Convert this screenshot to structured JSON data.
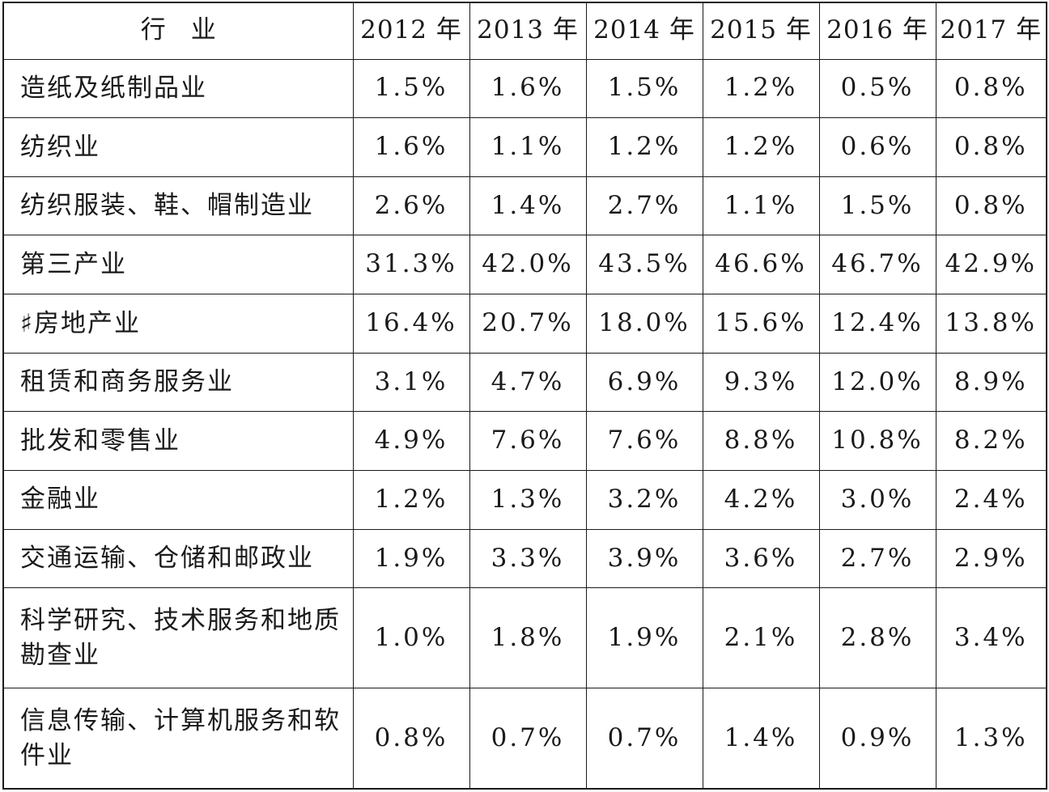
{
  "table": {
    "header": {
      "industry": "行　业",
      "years": [
        "2012 年",
        "2013 年",
        "2014 年",
        "2015 年",
        "2016 年",
        "2017 年"
      ]
    },
    "rows": [
      {
        "industry": "造纸及纸制品业",
        "values": [
          "1.5%",
          "1.6%",
          "1.5%",
          "1.2%",
          "0.5%",
          "0.8%"
        ]
      },
      {
        "industry": "纺织业",
        "values": [
          "1.6%",
          "1.1%",
          "1.2%",
          "1.2%",
          "0.6%",
          "0.8%"
        ]
      },
      {
        "industry": "纺织服装、鞋、帽制造业",
        "values": [
          "2.6%",
          "1.4%",
          "2.7%",
          "1.1%",
          "1.5%",
          "0.8%"
        ]
      },
      {
        "industry": "第三产业",
        "values": [
          "31.3%",
          "42.0%",
          "43.5%",
          "46.6%",
          "46.7%",
          "42.9%"
        ]
      },
      {
        "industry": "♯房地产业",
        "values": [
          "16.4%",
          "20.7%",
          "18.0%",
          "15.6%",
          "12.4%",
          "13.8%"
        ]
      },
      {
        "industry": "租赁和商务服务业",
        "values": [
          "3.1%",
          "4.7%",
          "6.9%",
          "9.3%",
          "12.0%",
          "8.9%"
        ]
      },
      {
        "industry": "批发和零售业",
        "values": [
          "4.9%",
          "7.6%",
          "7.6%",
          "8.8%",
          "10.8%",
          "8.2%"
        ]
      },
      {
        "industry": "金融业",
        "values": [
          "1.2%",
          "1.3%",
          "3.2%",
          "4.2%",
          "3.0%",
          "2.4%"
        ]
      },
      {
        "industry": "交通运输、仓储和邮政业",
        "values": [
          "1.9%",
          "3.3%",
          "3.9%",
          "3.6%",
          "2.7%",
          "2.9%"
        ]
      },
      {
        "industry": "科学研究、技术服务和地质勘查业",
        "values": [
          "1.0%",
          "1.8%",
          "1.9%",
          "2.1%",
          "2.8%",
          "3.4%"
        ]
      },
      {
        "industry": "信息传输、计算机服务和软件业",
        "values": [
          "0.8%",
          "0.7%",
          "0.7%",
          "1.4%",
          "0.9%",
          "1.3%"
        ]
      }
    ]
  }
}
